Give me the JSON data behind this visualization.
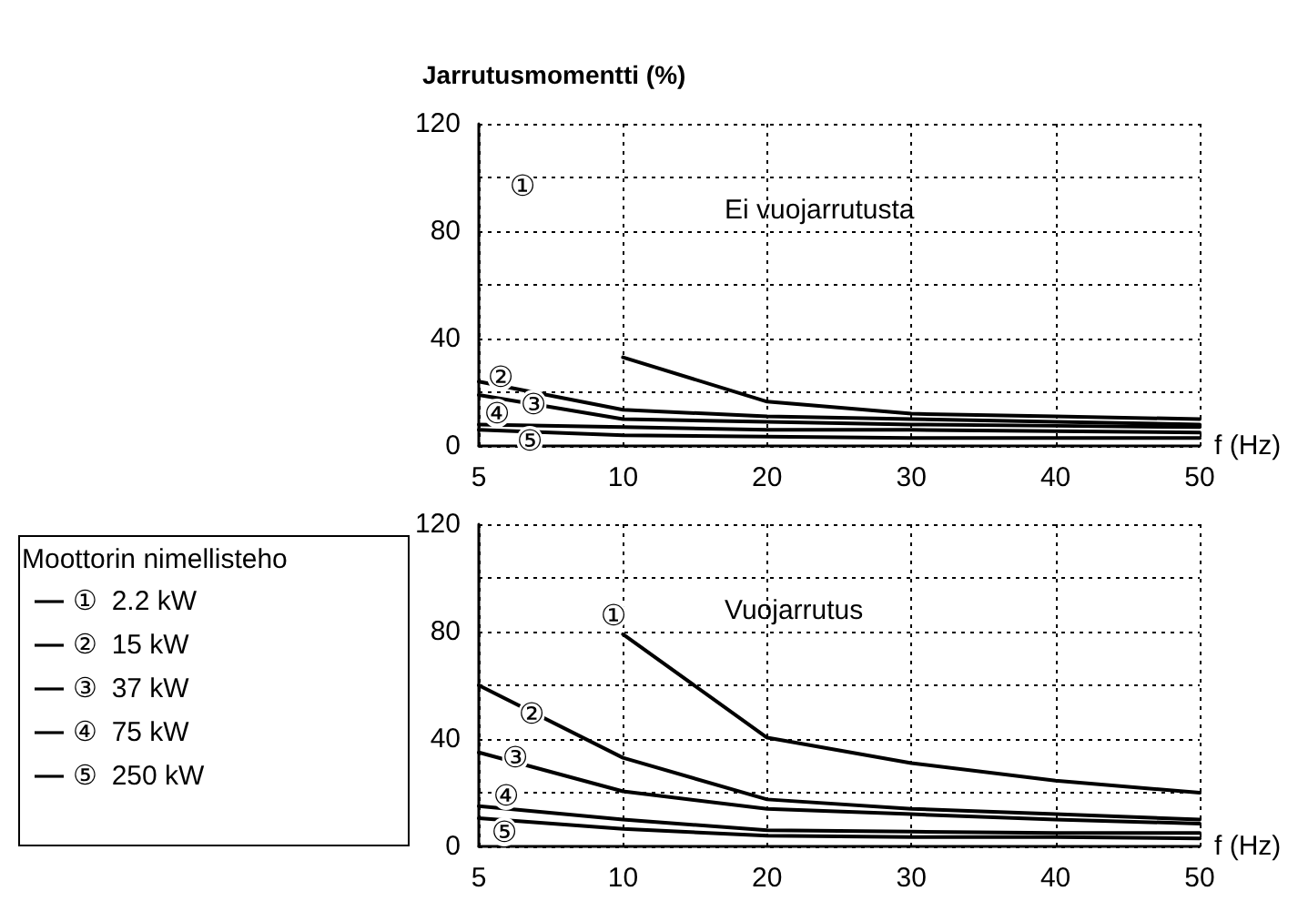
{
  "chart_data": [
    {
      "type": "line",
      "title": "Ei vuojarrutusta",
      "ylabel": "Jarrutusmomentti (%)",
      "xlabel": "f (Hz)",
      "categories": [
        "5",
        "10",
        "20",
        "30",
        "40",
        "50"
      ],
      "ylim": [
        0,
        120
      ],
      "yticks": [
        0,
        {
          "value": 20,
          "label": null
        },
        40,
        {
          "value": 60,
          "label": null
        },
        80,
        {
          "value": 100,
          "label": null
        },
        120
      ],
      "grid": true,
      "marker": "none",
      "line_style": "solid",
      "series": [
        {
          "color": "#000000",
          "values": [
            null,
            33,
            16.5,
            12,
            11,
            10
          ]
        },
        {
          "color": "#000000",
          "values": [
            24,
            13.5,
            11,
            10,
            9,
            8
          ]
        },
        {
          "color": "#000000",
          "values": [
            19,
            10,
            9,
            8,
            7.5,
            7
          ]
        },
        {
          "color": "#000000",
          "values": [
            8,
            7,
            6,
            6,
            5.5,
            5
          ]
        },
        {
          "color": "#000000",
          "values": [
            6,
            4,
            3.5,
            3,
            3,
            3
          ]
        }
      ],
      "annotations": [
        "①",
        "②",
        "③",
        "④",
        "⑤"
      ]
    },
    {
      "type": "line",
      "title": "Vuojarrutus",
      "xlabel": "f (Hz)",
      "legend_title": "Moottorin nimellisteho",
      "legend": "left",
      "categories": [
        "5",
        "10",
        "20",
        "30",
        "40",
        "50"
      ],
      "ylim": [
        0,
        120
      ],
      "yticks": [
        0,
        {
          "value": 20,
          "label": null
        },
        40,
        {
          "value": 60,
          "label": null
        },
        80,
        {
          "value": 100,
          "label": null
        },
        120
      ],
      "grid": true,
      "marker": "none",
      "line_style": "solid",
      "series": [
        {
          "name": "①  2.2 kW",
          "color": "#000000",
          "values": [
            null,
            79,
            40.5,
            31,
            24.5,
            20
          ]
        },
        {
          "name": "②  15 kW",
          "color": "#000000",
          "values": [
            60,
            33,
            17.5,
            14,
            12,
            10
          ]
        },
        {
          "name": "③  37 kW",
          "color": "#000000",
          "values": [
            35,
            20.5,
            14,
            12,
            10,
            8.5
          ]
        },
        {
          "name": "④  75 kW",
          "color": "#000000",
          "values": [
            15,
            10,
            6,
            5.5,
            5,
            5
          ]
        },
        {
          "name": "⑤  250 kW",
          "color": "#000000",
          "values": [
            10.5,
            6.5,
            4,
            3.5,
            3.5,
            3
          ]
        }
      ],
      "annotations": [
        "①",
        "②",
        "③",
        "④",
        "⑤"
      ]
    }
  ]
}
